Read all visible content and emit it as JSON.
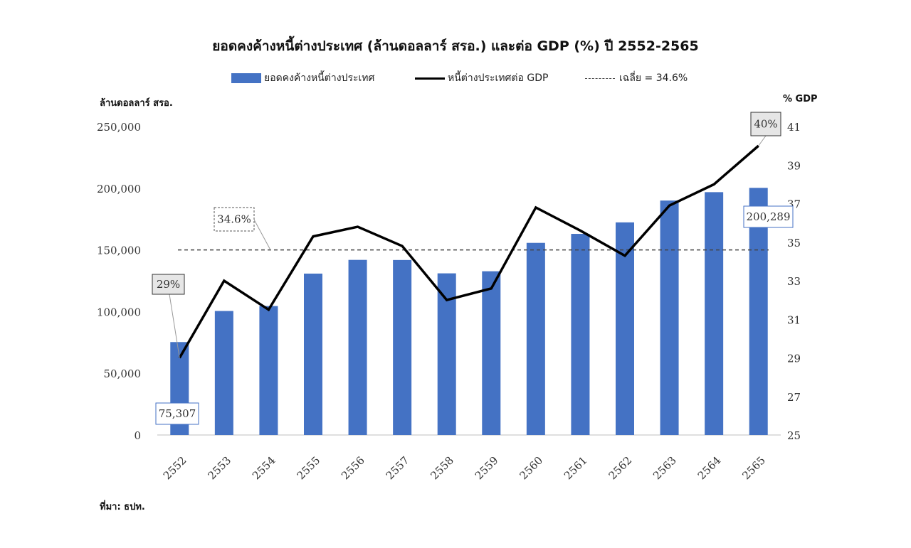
{
  "title": "ยอดคงค้างหนี้ต่างประเทศ (ล้านดอลลาร์ สรอ.) และต่อ GDP (%) ปี 2552-2565",
  "legend": {
    "bar": "ยอดคงค้างหนี้ต่างประเทศ",
    "line": "หนี้ต่างประเทศต่อ GDP",
    "avg": "เฉลี่ย = 34.6%"
  },
  "left_axis_title": "ล้านดอลลาร์ สรอ.",
  "right_axis_title": "% GDP",
  "source": "ที่มา: ธปท.",
  "colors": {
    "bar": "#4472C4",
    "line": "#000000",
    "avg": "#444444"
  },
  "chart_data": {
    "type": "bar",
    "categories": [
      "2552",
      "2553",
      "2554",
      "2555",
      "2556",
      "2557",
      "2558",
      "2559",
      "2560",
      "2561",
      "2562",
      "2563",
      "2564",
      "2565"
    ],
    "series": [
      {
        "name": "ยอดคงค้างหนี้ต่างประเทศ",
        "axis": "left",
        "type": "bar",
        "values": [
          75307,
          100500,
          104500,
          130800,
          141900,
          141800,
          131000,
          132700,
          155700,
          163000,
          172300,
          190000,
          196800,
          200289
        ]
      },
      {
        "name": "หนี้ต่างประเทศต่อ GDP",
        "axis": "right",
        "type": "line",
        "values": [
          29,
          33,
          31.5,
          35.3,
          35.8,
          34.8,
          32,
          32.6,
          36.8,
          35.6,
          34.3,
          36.9,
          38,
          40
        ]
      }
    ],
    "average": {
      "value": 34.6,
      "label": "34.6%",
      "axis": "right"
    },
    "left_axis": {
      "ylim": [
        0,
        250000
      ],
      "ticks": [
        "0",
        "50,000",
        "100,000",
        "150,000",
        "200,000",
        "250,000"
      ],
      "tick_values": [
        0,
        50000,
        100000,
        150000,
        200000,
        250000
      ]
    },
    "right_axis": {
      "ylim": [
        25,
        41
      ],
      "ticks": [
        "25",
        "27",
        "29",
        "31",
        "33",
        "35",
        "37",
        "39",
        "41"
      ],
      "tick_values": [
        25,
        27,
        29,
        31,
        33,
        35,
        37,
        39,
        41
      ]
    },
    "annotations": [
      {
        "text": "75,307",
        "series": 0,
        "index": 0
      },
      {
        "text": "29%",
        "series": 1,
        "index": 0
      },
      {
        "text": "200,289",
        "series": 0,
        "index": 13
      },
      {
        "text": "40%",
        "series": 1,
        "index": 13
      }
    ],
    "grid": false,
    "legend_position": "top"
  }
}
